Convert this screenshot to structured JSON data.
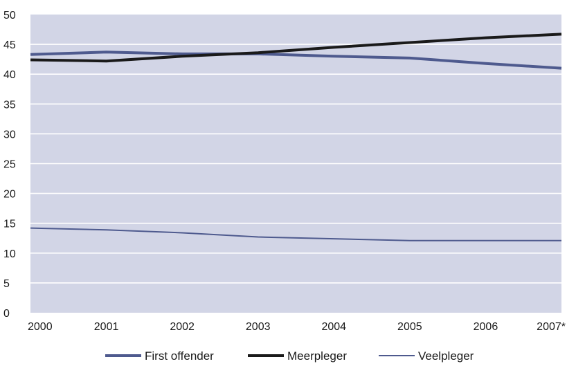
{
  "chart_data": {
    "type": "line",
    "categories": [
      "2000",
      "2001",
      "2002",
      "2003",
      "2004",
      "2005",
      "2006",
      "2007*"
    ],
    "ylim": [
      0,
      50
    ],
    "yticks": [
      "0",
      "5",
      "10",
      "15",
      "20",
      "25",
      "30",
      "35",
      "40",
      "45",
      "50"
    ],
    "grid": true,
    "legend_position": "bottom",
    "background": "#d2d5e6",
    "series": [
      {
        "name": "First offender",
        "color": "#4e5a8e",
        "line_weight": "thick",
        "values": [
          43.3,
          43.7,
          43.4,
          43.4,
          43.0,
          42.7,
          41.8,
          41.0
        ]
      },
      {
        "name": "Meerpleger",
        "color": "#1a1a1a",
        "line_weight": "thick",
        "values": [
          42.4,
          42.2,
          43.0,
          43.6,
          44.5,
          45.3,
          46.1,
          46.7
        ]
      },
      {
        "name": "Veelpleger",
        "color": "#4e5a8e",
        "line_weight": "thin",
        "values": [
          14.2,
          13.9,
          13.4,
          12.7,
          12.4,
          12.1,
          12.1,
          12.1
        ]
      }
    ]
  }
}
